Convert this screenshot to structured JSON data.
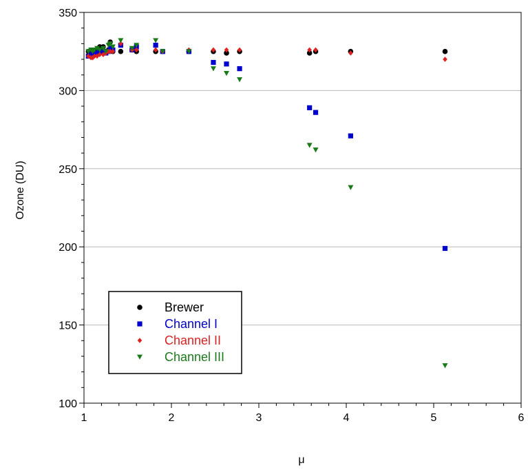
{
  "chart_data": {
    "type": "scatter",
    "title": "",
    "xlabel": "μ",
    "ylabel": "Ozone (DU)",
    "xlim": [
      1,
      6
    ],
    "ylim": [
      100,
      350
    ],
    "xticks": [
      1,
      2,
      3,
      4,
      5,
      6
    ],
    "yticks": [
      100,
      150,
      200,
      250,
      300,
      350
    ],
    "grid": "horizontal",
    "legend_position": "bottom-left",
    "series": [
      {
        "name": "Brewer",
        "color": "#000000",
        "marker": "circle",
        "points": [
          [
            1.05,
            325
          ],
          [
            1.08,
            324
          ],
          [
            1.1,
            325
          ],
          [
            1.12,
            324
          ],
          [
            1.15,
            326
          ],
          [
            1.18,
            328
          ],
          [
            1.22,
            328
          ],
          [
            1.25,
            325
          ],
          [
            1.28,
            326
          ],
          [
            1.3,
            331
          ],
          [
            1.33,
            325
          ],
          [
            1.42,
            325
          ],
          [
            1.55,
            326
          ],
          [
            1.6,
            325
          ],
          [
            1.82,
            325
          ],
          [
            1.9,
            325
          ],
          [
            2.2,
            325
          ],
          [
            2.48,
            325
          ],
          [
            2.63,
            324
          ],
          [
            2.78,
            325
          ],
          [
            3.58,
            324
          ],
          [
            3.65,
            325
          ],
          [
            4.05,
            325
          ],
          [
            5.13,
            325
          ]
        ]
      },
      {
        "name": "Channel I",
        "color": "#0000cc",
        "marker": "square",
        "points": [
          [
            1.05,
            322
          ],
          [
            1.08,
            323
          ],
          [
            1.1,
            324
          ],
          [
            1.12,
            323
          ],
          [
            1.15,
            324
          ],
          [
            1.18,
            325
          ],
          [
            1.22,
            325
          ],
          [
            1.25,
            324
          ],
          [
            1.28,
            325
          ],
          [
            1.3,
            327
          ],
          [
            1.33,
            326
          ],
          [
            1.42,
            329
          ],
          [
            1.55,
            326
          ],
          [
            1.6,
            328
          ],
          [
            1.82,
            329
          ],
          [
            1.9,
            325
          ],
          [
            2.2,
            325
          ],
          [
            2.48,
            318
          ],
          [
            2.63,
            317
          ],
          [
            2.78,
            314
          ],
          [
            3.58,
            289
          ],
          [
            3.65,
            286
          ],
          [
            4.05,
            271
          ],
          [
            5.13,
            199
          ]
        ]
      },
      {
        "name": "Channel II",
        "color": "#dd2222",
        "marker": "diamond",
        "points": [
          [
            1.05,
            322
          ],
          [
            1.08,
            321
          ],
          [
            1.1,
            321
          ],
          [
            1.12,
            322
          ],
          [
            1.15,
            322
          ],
          [
            1.18,
            323
          ],
          [
            1.22,
            323
          ],
          [
            1.25,
            324
          ],
          [
            1.28,
            325
          ],
          [
            1.3,
            325
          ],
          [
            1.33,
            325
          ],
          [
            1.42,
            330
          ],
          [
            1.55,
            326
          ],
          [
            1.6,
            326
          ],
          [
            1.82,
            326
          ],
          [
            1.9,
            325
          ],
          [
            2.2,
            326
          ],
          [
            2.48,
            326
          ],
          [
            2.63,
            326
          ],
          [
            2.78,
            326
          ],
          [
            3.58,
            326
          ],
          [
            3.65,
            326
          ],
          [
            4.05,
            324
          ],
          [
            5.13,
            320
          ]
        ]
      },
      {
        "name": "Channel III",
        "color": "#1a7a1a",
        "marker": "triangle-down",
        "points": [
          [
            1.05,
            325
          ],
          [
            1.08,
            326
          ],
          [
            1.1,
            325
          ],
          [
            1.12,
            326
          ],
          [
            1.15,
            327
          ],
          [
            1.18,
            326
          ],
          [
            1.22,
            327
          ],
          [
            1.25,
            325
          ],
          [
            1.28,
            329
          ],
          [
            1.3,
            330
          ],
          [
            1.33,
            328
          ],
          [
            1.42,
            332
          ],
          [
            1.55,
            327
          ],
          [
            1.6,
            329
          ],
          [
            1.82,
            332
          ],
          [
            1.9,
            325
          ],
          [
            2.2,
            325
          ],
          [
            2.48,
            314
          ],
          [
            2.63,
            311
          ],
          [
            2.78,
            307
          ],
          [
            3.58,
            265
          ],
          [
            3.65,
            262
          ],
          [
            4.05,
            238
          ],
          [
            5.13,
            124
          ]
        ]
      }
    ]
  }
}
